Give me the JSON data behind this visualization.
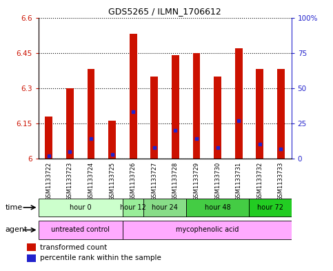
{
  "title": "GDS5265 / ILMN_1706612",
  "samples": [
    "GSM1133722",
    "GSM1133723",
    "GSM1133724",
    "GSM1133725",
    "GSM1133726",
    "GSM1133727",
    "GSM1133728",
    "GSM1133729",
    "GSM1133730",
    "GSM1133731",
    "GSM1133732",
    "GSM1133733"
  ],
  "bar_values": [
    6.18,
    6.3,
    6.38,
    6.16,
    6.53,
    6.35,
    6.44,
    6.45,
    6.35,
    6.47,
    6.38,
    6.38
  ],
  "bar_base": 6.0,
  "percentile_values": [
    2,
    5,
    14,
    3,
    33,
    8,
    20,
    14,
    8,
    27,
    10,
    7
  ],
  "ylim": [
    6.0,
    6.6
  ],
  "yticks": [
    6.0,
    6.15,
    6.3,
    6.45,
    6.6
  ],
  "ytick_labels": [
    "6",
    "6.15",
    "6.3",
    "6.45",
    "6.6"
  ],
  "y2_ticks": [
    0,
    25,
    50,
    75,
    100
  ],
  "y2_labels": [
    "0",
    "25",
    "50",
    "75",
    "100%"
  ],
  "bar_color": "#cc1100",
  "percentile_color": "#2222cc",
  "bg_color": "#ffffff",
  "plot_bg": "#ffffff",
  "title_color": "#000000",
  "left_label_color": "#cc1100",
  "right_label_color": "#2222cc",
  "time_groups": [
    {
      "label": "hour 0",
      "start": 0,
      "end": 4,
      "color": "#ccffcc"
    },
    {
      "label": "hour 12",
      "start": 4,
      "end": 5,
      "color": "#99ee99"
    },
    {
      "label": "hour 24",
      "start": 5,
      "end": 7,
      "color": "#88dd88"
    },
    {
      "label": "hour 48",
      "start": 7,
      "end": 10,
      "color": "#44cc44"
    },
    {
      "label": "hour 72",
      "start": 10,
      "end": 12,
      "color": "#22cc22"
    }
  ],
  "agent_groups": [
    {
      "label": "untreated control",
      "start": 0,
      "end": 4,
      "color": "#ffaaff"
    },
    {
      "label": "mycophenolic acid",
      "start": 4,
      "end": 12,
      "color": "#ffaaff"
    }
  ],
  "legend_red": "transformed count",
  "legend_blue": "percentile rank within the sample",
  "xtick_bg": "#cccccc",
  "n_samples": 12
}
